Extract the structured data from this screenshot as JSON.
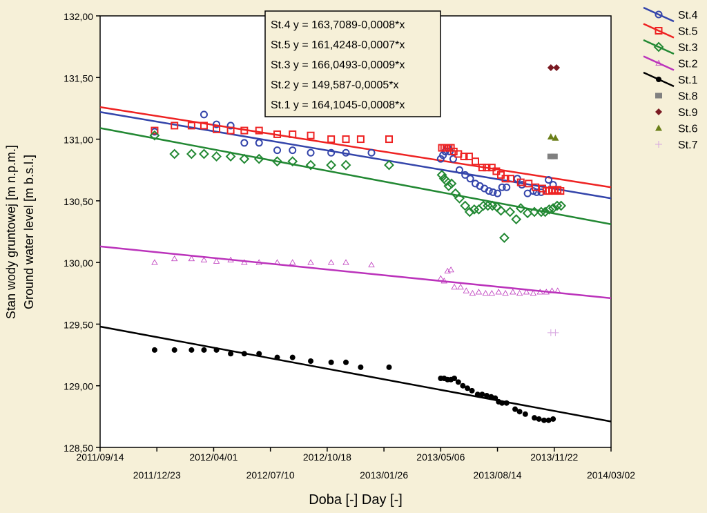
{
  "chart_data": {
    "type": "scatter",
    "ylabel_line1": "Stan wody gruntowej [m n.p.m.]",
    "ylabel_line2": "Ground water level [m b.s.l.]",
    "xlabel": "Doba [-] Day [-]",
    "ylim": [
      128.5,
      132.0
    ],
    "yticks": [
      "132,00",
      "131,50",
      "131,00",
      "130,50",
      "130,00",
      "129,50",
      "129,00",
      "128,50"
    ],
    "yticks_values": [
      132.0,
      131.5,
      131.0,
      130.5,
      130.0,
      129.5,
      129.0,
      128.5
    ],
    "xlim": [
      "2011-09-14",
      "2014-03-02"
    ],
    "xticks_upper": [
      "2011/09/14",
      "2012/04/01",
      "2012/10/18",
      "2013/05/06",
      "2013/11/22"
    ],
    "xticks_lower": [
      "2011/12/23",
      "2012/07/10",
      "2013/01/26",
      "2013/08/14",
      "2014/03/02"
    ],
    "equations": [
      "St.4 y = 163,7089-0,0008*x",
      "St.5 y = 161,4248-0,0007*x",
      "St.3 y = 166,0493-0,0009*x",
      "St.2 y = 149,587-0,0005*x",
      "St.1 y = 164,1045-0,0008*x"
    ],
    "series": [
      {
        "name": "St.4",
        "color": "#3344aa",
        "marker": "circle",
        "fit": {
          "x": [
            "2011-09-14",
            "2014-03-02"
          ],
          "y": [
            131.22,
            130.52
          ]
        },
        "points": [
          {
            "x": "2011-12-19",
            "y": 131.06
          },
          {
            "x": "2012-03-15",
            "y": 131.2
          },
          {
            "x": "2012-04-06",
            "y": 131.12
          },
          {
            "x": "2012-05-01",
            "y": 131.11
          },
          {
            "x": "2012-05-25",
            "y": 130.97
          },
          {
            "x": "2012-06-20",
            "y": 130.97
          },
          {
            "x": "2012-07-22",
            "y": 130.91
          },
          {
            "x": "2012-08-18",
            "y": 130.91
          },
          {
            "x": "2012-09-19",
            "y": 130.89
          },
          {
            "x": "2012-10-25",
            "y": 130.89
          },
          {
            "x": "2012-11-20",
            "y": 130.89
          },
          {
            "x": "2013-01-04",
            "y": 130.89
          },
          {
            "x": "2013-05-06",
            "y": 130.84
          },
          {
            "x": "2013-05-10",
            "y": 130.87
          },
          {
            "x": "2013-05-14",
            "y": 130.9
          },
          {
            "x": "2013-05-18",
            "y": 130.93
          },
          {
            "x": "2013-05-22",
            "y": 130.9
          },
          {
            "x": "2013-05-28",
            "y": 130.84
          },
          {
            "x": "2013-06-08",
            "y": 130.75
          },
          {
            "x": "2013-06-18",
            "y": 130.71
          },
          {
            "x": "2013-06-27",
            "y": 130.68
          },
          {
            "x": "2013-07-06",
            "y": 130.64
          },
          {
            "x": "2013-07-14",
            "y": 130.62
          },
          {
            "x": "2013-07-22",
            "y": 130.6
          },
          {
            "x": "2013-07-30",
            "y": 130.58
          },
          {
            "x": "2013-08-06",
            "y": 130.57
          },
          {
            "x": "2013-08-14",
            "y": 130.56
          },
          {
            "x": "2013-08-22",
            "y": 130.61
          },
          {
            "x": "2013-08-30",
            "y": 130.61
          },
          {
            "x": "2013-09-18",
            "y": 130.68
          },
          {
            "x": "2013-09-26",
            "y": 130.63
          },
          {
            "x": "2013-10-06",
            "y": 130.56
          },
          {
            "x": "2013-10-16",
            "y": 130.58
          },
          {
            "x": "2013-10-22",
            "y": 130.57
          },
          {
            "x": "2013-10-30",
            "y": 130.57
          },
          {
            "x": "2013-11-12",
            "y": 130.67
          },
          {
            "x": "2013-11-20",
            "y": 130.63
          }
        ]
      },
      {
        "name": "St.5",
        "color": "#ee2222",
        "marker": "square",
        "fit": {
          "x": [
            "2011-09-14",
            "2014-03-02"
          ],
          "y": [
            131.26,
            130.61
          ]
        },
        "points": [
          {
            "x": "2011-12-19",
            "y": 131.07
          },
          {
            "x": "2012-01-23",
            "y": 131.11
          },
          {
            "x": "2012-02-22",
            "y": 131.11
          },
          {
            "x": "2012-03-15",
            "y": 131.11
          },
          {
            "x": "2012-04-06",
            "y": 131.08
          },
          {
            "x": "2012-05-01",
            "y": 131.07
          },
          {
            "x": "2012-05-25",
            "y": 131.07
          },
          {
            "x": "2012-06-20",
            "y": 131.07
          },
          {
            "x": "2012-07-22",
            "y": 131.04
          },
          {
            "x": "2012-08-18",
            "y": 131.04
          },
          {
            "x": "2012-09-19",
            "y": 131.03
          },
          {
            "x": "2012-10-25",
            "y": 131.0
          },
          {
            "x": "2012-11-20",
            "y": 131.0
          },
          {
            "x": "2012-12-16",
            "y": 131.0
          },
          {
            "x": "2013-02-04",
            "y": 131.0
          },
          {
            "x": "2013-05-08",
            "y": 130.93
          },
          {
            "x": "2013-05-12",
            "y": 130.93
          },
          {
            "x": "2013-05-16",
            "y": 130.93
          },
          {
            "x": "2013-05-20",
            "y": 130.93
          },
          {
            "x": "2013-05-24",
            "y": 130.93
          },
          {
            "x": "2013-05-29",
            "y": 130.9
          },
          {
            "x": "2013-06-06",
            "y": 130.88
          },
          {
            "x": "2013-06-16",
            "y": 130.86
          },
          {
            "x": "2013-06-25",
            "y": 130.86
          },
          {
            "x": "2013-07-06",
            "y": 130.82
          },
          {
            "x": "2013-07-18",
            "y": 130.77
          },
          {
            "x": "2013-07-26",
            "y": 130.77
          },
          {
            "x": "2013-08-04",
            "y": 130.77
          },
          {
            "x": "2013-08-12",
            "y": 130.74
          },
          {
            "x": "2013-08-20",
            "y": 130.71
          },
          {
            "x": "2013-08-28",
            "y": 130.68
          },
          {
            "x": "2013-09-06",
            "y": 130.68
          },
          {
            "x": "2013-09-24",
            "y": 130.65
          },
          {
            "x": "2013-10-08",
            "y": 130.64
          },
          {
            "x": "2013-10-20",
            "y": 130.61
          },
          {
            "x": "2013-11-01",
            "y": 130.6
          },
          {
            "x": "2013-11-08",
            "y": 130.58
          },
          {
            "x": "2013-11-13",
            "y": 130.58
          },
          {
            "x": "2013-11-18",
            "y": 130.59
          },
          {
            "x": "2013-11-23",
            "y": 130.58
          },
          {
            "x": "2013-11-28",
            "y": 130.59
          },
          {
            "x": "2013-12-03",
            "y": 130.58
          }
        ]
      },
      {
        "name": "St.3",
        "color": "#228833",
        "marker": "diamond",
        "fit": {
          "x": [
            "2011-09-14",
            "2014-03-02"
          ],
          "y": [
            131.09,
            130.31
          ]
        },
        "points": [
          {
            "x": "2011-12-19",
            "y": 131.03
          },
          {
            "x": "2012-01-23",
            "y": 130.88
          },
          {
            "x": "2012-02-22",
            "y": 130.88
          },
          {
            "x": "2012-03-15",
            "y": 130.88
          },
          {
            "x": "2012-04-06",
            "y": 130.86
          },
          {
            "x": "2012-05-01",
            "y": 130.86
          },
          {
            "x": "2012-05-25",
            "y": 130.84
          },
          {
            "x": "2012-06-20",
            "y": 130.84
          },
          {
            "x": "2012-07-22",
            "y": 130.82
          },
          {
            "x": "2012-08-18",
            "y": 130.82
          },
          {
            "x": "2012-09-19",
            "y": 130.79
          },
          {
            "x": "2012-10-25",
            "y": 130.79
          },
          {
            "x": "2012-11-20",
            "y": 130.79
          },
          {
            "x": "2013-02-04",
            "y": 130.79
          },
          {
            "x": "2013-05-08",
            "y": 130.71
          },
          {
            "x": "2013-05-12",
            "y": 130.68
          },
          {
            "x": "2013-05-16",
            "y": 130.66
          },
          {
            "x": "2013-05-20",
            "y": 130.62
          },
          {
            "x": "2013-05-25",
            "y": 130.64
          },
          {
            "x": "2013-06-01",
            "y": 130.56
          },
          {
            "x": "2013-06-08",
            "y": 130.52
          },
          {
            "x": "2013-06-18",
            "y": 130.46
          },
          {
            "x": "2013-06-26",
            "y": 130.41
          },
          {
            "x": "2013-07-04",
            "y": 130.43
          },
          {
            "x": "2013-07-12",
            "y": 130.43
          },
          {
            "x": "2013-07-20",
            "y": 130.46
          },
          {
            "x": "2013-07-28",
            "y": 130.46
          },
          {
            "x": "2013-08-05",
            "y": 130.46
          },
          {
            "x": "2013-08-13",
            "y": 130.45
          },
          {
            "x": "2013-08-20",
            "y": 130.42
          },
          {
            "x": "2013-08-26",
            "y": 130.2
          },
          {
            "x": "2013-09-05",
            "y": 130.41
          },
          {
            "x": "2013-09-16",
            "y": 130.35
          },
          {
            "x": "2013-09-24",
            "y": 130.44
          },
          {
            "x": "2013-10-06",
            "y": 130.4
          },
          {
            "x": "2013-10-18",
            "y": 130.41
          },
          {
            "x": "2013-10-30",
            "y": 130.41
          },
          {
            "x": "2013-11-06",
            "y": 130.41
          },
          {
            "x": "2013-11-13",
            "y": 130.43
          },
          {
            "x": "2013-11-20",
            "y": 130.44
          },
          {
            "x": "2013-11-27",
            "y": 130.46
          },
          {
            "x": "2013-12-04",
            "y": 130.46
          }
        ]
      },
      {
        "name": "St.2",
        "color": "#bb33bb",
        "marker": "triangle-open",
        "fit": {
          "x": [
            "2011-09-14",
            "2014-03-02"
          ],
          "y": [
            130.13,
            129.71
          ]
        },
        "points": [
          {
            "x": "2011-12-19",
            "y": 130.0
          },
          {
            "x": "2012-01-23",
            "y": 130.03
          },
          {
            "x": "2012-02-22",
            "y": 130.03
          },
          {
            "x": "2012-03-15",
            "y": 130.02
          },
          {
            "x": "2012-04-06",
            "y": 130.01
          },
          {
            "x": "2012-05-01",
            "y": 130.02
          },
          {
            "x": "2012-05-25",
            "y": 130.0
          },
          {
            "x": "2012-06-20",
            "y": 130.0
          },
          {
            "x": "2012-07-22",
            "y": 130.0
          },
          {
            "x": "2012-08-18",
            "y": 130.0
          },
          {
            "x": "2012-09-19",
            "y": 130.0
          },
          {
            "x": "2012-10-25",
            "y": 130.0
          },
          {
            "x": "2012-11-20",
            "y": 130.0
          },
          {
            "x": "2013-01-04",
            "y": 129.98
          },
          {
            "x": "2013-05-06",
            "y": 129.87
          },
          {
            "x": "2013-05-12",
            "y": 129.85
          },
          {
            "x": "2013-05-18",
            "y": 129.93
          },
          {
            "x": "2013-05-24",
            "y": 129.94
          },
          {
            "x": "2013-05-30",
            "y": 129.8
          },
          {
            "x": "2013-06-10",
            "y": 129.8
          },
          {
            "x": "2013-06-20",
            "y": 129.77
          },
          {
            "x": "2013-07-01",
            "y": 129.75
          },
          {
            "x": "2013-07-12",
            "y": 129.76
          },
          {
            "x": "2013-07-24",
            "y": 129.75
          },
          {
            "x": "2013-08-04",
            "y": 129.75
          },
          {
            "x": "2013-08-16",
            "y": 129.76
          },
          {
            "x": "2013-08-28",
            "y": 129.75
          },
          {
            "x": "2013-09-10",
            "y": 129.76
          },
          {
            "x": "2013-09-22",
            "y": 129.75
          },
          {
            "x": "2013-10-04",
            "y": 129.76
          },
          {
            "x": "2013-10-16",
            "y": 129.75
          },
          {
            "x": "2013-10-28",
            "y": 129.76
          },
          {
            "x": "2013-11-08",
            "y": 129.76
          },
          {
            "x": "2013-11-18",
            "y": 129.77
          },
          {
            "x": "2013-11-28",
            "y": 129.77
          }
        ]
      },
      {
        "name": "St.1",
        "color": "#000000",
        "marker": "dot",
        "fit": {
          "x": [
            "2011-09-14",
            "2014-03-02"
          ],
          "y": [
            129.48,
            128.71
          ]
        },
        "points": [
          {
            "x": "2011-12-19",
            "y": 129.29
          },
          {
            "x": "2012-01-23",
            "y": 129.29
          },
          {
            "x": "2012-02-22",
            "y": 129.29
          },
          {
            "x": "2012-03-15",
            "y": 129.29
          },
          {
            "x": "2012-04-06",
            "y": 129.29
          },
          {
            "x": "2012-05-01",
            "y": 129.26
          },
          {
            "x": "2012-05-25",
            "y": 129.26
          },
          {
            "x": "2012-06-20",
            "y": 129.26
          },
          {
            "x": "2012-07-22",
            "y": 129.23
          },
          {
            "x": "2012-08-18",
            "y": 129.23
          },
          {
            "x": "2012-09-19",
            "y": 129.2
          },
          {
            "x": "2012-10-25",
            "y": 129.19
          },
          {
            "x": "2012-11-20",
            "y": 129.19
          },
          {
            "x": "2012-12-16",
            "y": 129.15
          },
          {
            "x": "2013-02-04",
            "y": 129.15
          },
          {
            "x": "2013-05-06",
            "y": 129.06
          },
          {
            "x": "2013-05-12",
            "y": 129.06
          },
          {
            "x": "2013-05-18",
            "y": 129.05
          },
          {
            "x": "2013-05-24",
            "y": 129.05
          },
          {
            "x": "2013-05-30",
            "y": 129.06
          },
          {
            "x": "2013-06-06",
            "y": 129.03
          },
          {
            "x": "2013-06-14",
            "y": 129.0
          },
          {
            "x": "2013-06-22",
            "y": 128.98
          },
          {
            "x": "2013-06-30",
            "y": 128.96
          },
          {
            "x": "2013-07-10",
            "y": 128.93
          },
          {
            "x": "2013-07-18",
            "y": 128.93
          },
          {
            "x": "2013-07-26",
            "y": 128.92
          },
          {
            "x": "2013-08-03",
            "y": 128.91
          },
          {
            "x": "2013-08-10",
            "y": 128.9
          },
          {
            "x": "2013-08-16",
            "y": 128.87
          },
          {
            "x": "2013-08-22",
            "y": 128.86
          },
          {
            "x": "2013-08-30",
            "y": 128.86
          },
          {
            "x": "2013-09-14",
            "y": 128.81
          },
          {
            "x": "2013-09-22",
            "y": 128.79
          },
          {
            "x": "2013-10-02",
            "y": 128.77
          },
          {
            "x": "2013-10-18",
            "y": 128.74
          },
          {
            "x": "2013-10-26",
            "y": 128.73
          },
          {
            "x": "2013-11-04",
            "y": 128.72
          },
          {
            "x": "2013-11-12",
            "y": 128.72
          },
          {
            "x": "2013-11-20",
            "y": 128.73
          }
        ]
      },
      {
        "name": "St.8",
        "color": "#808080",
        "marker": "square-filled",
        "points": [
          {
            "x": "2013-11-16",
            "y": 130.86
          },
          {
            "x": "2013-11-22",
            "y": 130.86
          }
        ]
      },
      {
        "name": "St.9",
        "color": "#7a1a22",
        "marker": "diamond-filled",
        "points": [
          {
            "x": "2013-11-16",
            "y": 131.58
          },
          {
            "x": "2013-11-26",
            "y": 131.58
          }
        ]
      },
      {
        "name": "St.6",
        "color": "#6b7f1a",
        "marker": "triangle-filled",
        "points": [
          {
            "x": "2013-11-16",
            "y": 131.02
          },
          {
            "x": "2013-11-24",
            "y": 131.01
          }
        ]
      },
      {
        "name": "St.7",
        "color": "#d7a6e0",
        "marker": "plus",
        "points": [
          {
            "x": "2013-11-16",
            "y": 129.43
          },
          {
            "x": "2013-11-24",
            "y": 129.43
          }
        ]
      }
    ]
  }
}
